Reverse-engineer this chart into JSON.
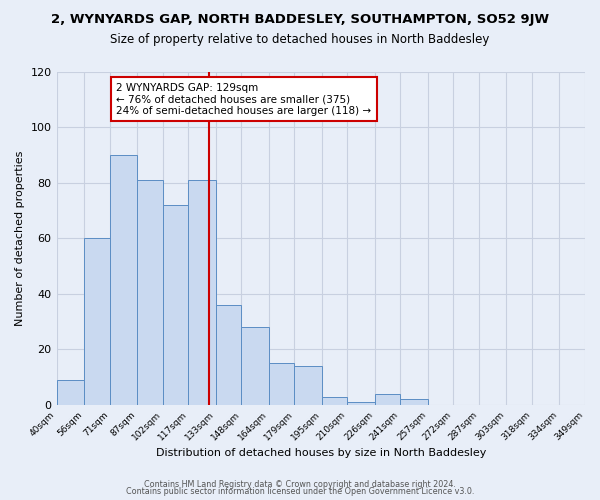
{
  "title": "2, WYNYARDS GAP, NORTH BADDESLEY, SOUTHAMPTON, SO52 9JW",
  "subtitle": "Size of property relative to detached houses in North Baddesley",
  "xlabel": "Distribution of detached houses by size in North Baddesley",
  "ylabel": "Number of detached properties",
  "bar_edges": [
    40,
    56,
    71,
    87,
    102,
    117,
    133,
    148,
    164,
    179,
    195,
    210,
    226,
    241,
    257,
    272,
    287,
    303,
    318,
    334,
    349
  ],
  "bar_heights": [
    9,
    60,
    90,
    81,
    72,
    81,
    36,
    28,
    15,
    14,
    3,
    1,
    4,
    2,
    0,
    0,
    0,
    0,
    0,
    0
  ],
  "bar_color": "#c9d9f0",
  "bar_edge_color": "#5b8dc4",
  "vline_x": 129,
  "vline_color": "#cc0000",
  "annotation_line1": "2 WYNYARDS GAP: 129sqm",
  "annotation_line2": "← 76% of detached houses are smaller (375)",
  "annotation_line3": "24% of semi-detached houses are larger (118) →",
  "annotation_box_color": "#ffffff",
  "annotation_box_edge_color": "#cc0000",
  "ylim": [
    0,
    120
  ],
  "yticks": [
    0,
    20,
    40,
    60,
    80,
    100,
    120
  ],
  "grid_color": "#c8d0e0",
  "bg_color": "#e8eef8",
  "footer_line1": "Contains HM Land Registry data © Crown copyright and database right 2024.",
  "footer_line2": "Contains public sector information licensed under the Open Government Licence v3.0.",
  "tick_labels": [
    "40sqm",
    "56sqm",
    "71sqm",
    "87sqm",
    "102sqm",
    "117sqm",
    "133sqm",
    "148sqm",
    "164sqm",
    "179sqm",
    "195sqm",
    "210sqm",
    "226sqm",
    "241sqm",
    "257sqm",
    "272sqm",
    "287sqm",
    "303sqm",
    "318sqm",
    "334sqm",
    "349sqm"
  ]
}
